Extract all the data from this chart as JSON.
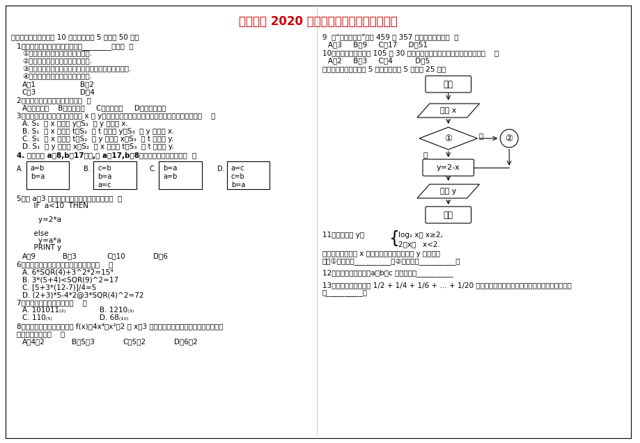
{
  "title": "柘木中学 2020 学年高二第一次月考数学试题",
  "title_color": "#cc0000",
  "bg_color": "#ffffff",
  "q9_text": "9  用“辗转相除法”求得 459 和 357 的最大公约数是（  ）",
  "flowchart_start": "开始",
  "flowchart_input": "输入 x",
  "flowchart_diamond": "①",
  "flowchart_yes": "是",
  "flowchart_no": "否",
  "flowchart_box1": "y=2-x",
  "flowchart_circle2": "②",
  "flowchart_output": "输出 y",
  "flowchart_end": "结束"
}
